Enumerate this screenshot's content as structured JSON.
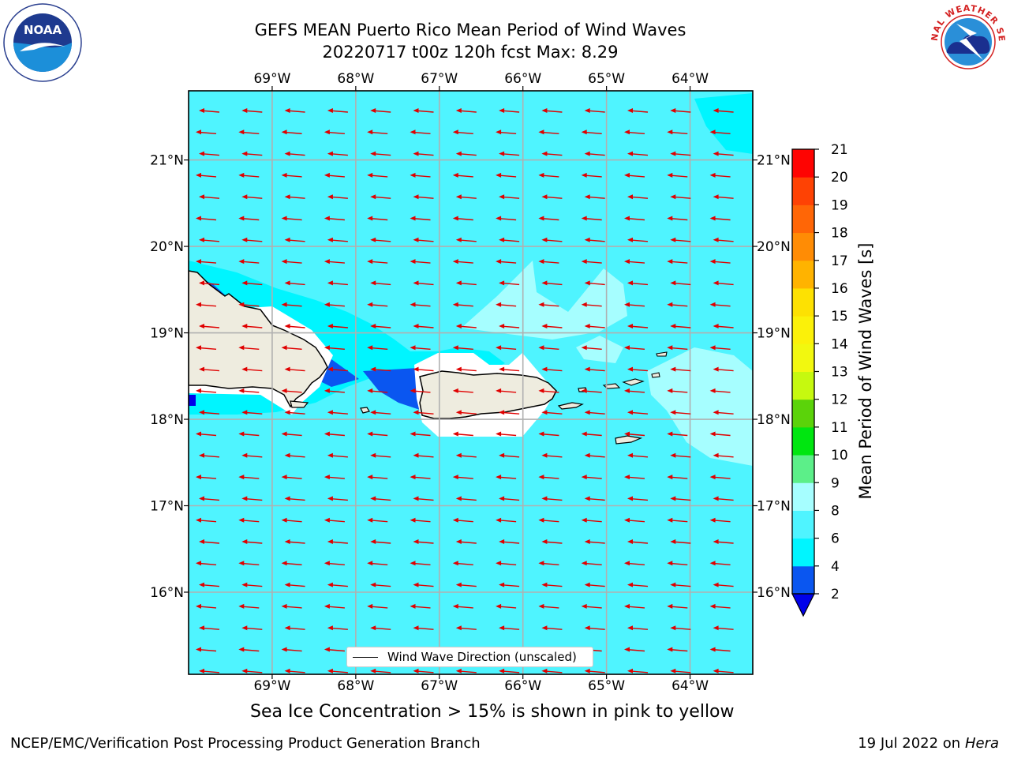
{
  "title": {
    "line1": "GEFS MEAN Puerto Rico Mean Period of Wind Waves",
    "line2": "20220717 t00z 120h fcst   Max: 8.29"
  },
  "logos": {
    "left": {
      "name": "noaa-logo",
      "text": "NOAA",
      "ring_text": "NATIONAL OCEANIC AND ATMOSPHERIC ADMINISTRATION · U.S. DEPARTMENT OF COMMERCE"
    },
    "right": {
      "name": "nws-logo",
      "ring_text": "NATIONAL WEATHER SERVICE"
    }
  },
  "map": {
    "region": "Puerto Rico",
    "lon_ticks": [
      "69°W",
      "68°W",
      "67°W",
      "66°W",
      "65°W",
      "64°W"
    ],
    "lat_ticks": [
      "21°N",
      "20°N",
      "19°N",
      "18°N",
      "17°N",
      "16°N"
    ],
    "lon_range": [
      -70.0,
      -63.25
    ],
    "lat_range": [
      15.05,
      21.8
    ],
    "grid": true,
    "vector_field": "Wind Wave Direction (unscaled)",
    "vector_direction": "westward",
    "land_color": "#eeecdf",
    "coastline_color": "#000000"
  },
  "colorbar": {
    "label": "Mean Period of Wind Waves [s]",
    "ticks": [
      "21",
      "20",
      "19",
      "18",
      "17",
      "16",
      "15",
      "14",
      "13",
      "12",
      "11",
      "10",
      "9",
      "8",
      "6",
      "4",
      "2"
    ],
    "levels": [
      2,
      4,
      6,
      8,
      9,
      10,
      11,
      12,
      13,
      14,
      15,
      16,
      17,
      18,
      19,
      20,
      21
    ],
    "colors": [
      "#0a56f0",
      "#00f5ff",
      "#4ff4ff",
      "#a6feff",
      "#5cef89",
      "#00e610",
      "#5bd30a",
      "#c6f90f",
      "#f2f80f",
      "#fbf109",
      "#fde102",
      "#ffb300",
      "#ff8c05",
      "#ff6606",
      "#fe4204",
      "#fe0402"
    ],
    "under_color": "#0000ea"
  },
  "legend": {
    "label": "Wind Wave Direction (unscaled)"
  },
  "notes": {
    "sea_ice": "Sea Ice Concentration > 15% is shown in pink to yellow"
  },
  "footer": {
    "left": "NCEP/EMC/Verification Post Processing Product Generation Branch",
    "right_date": "19 Jul 2022 on",
    "right_host": "Hera"
  }
}
